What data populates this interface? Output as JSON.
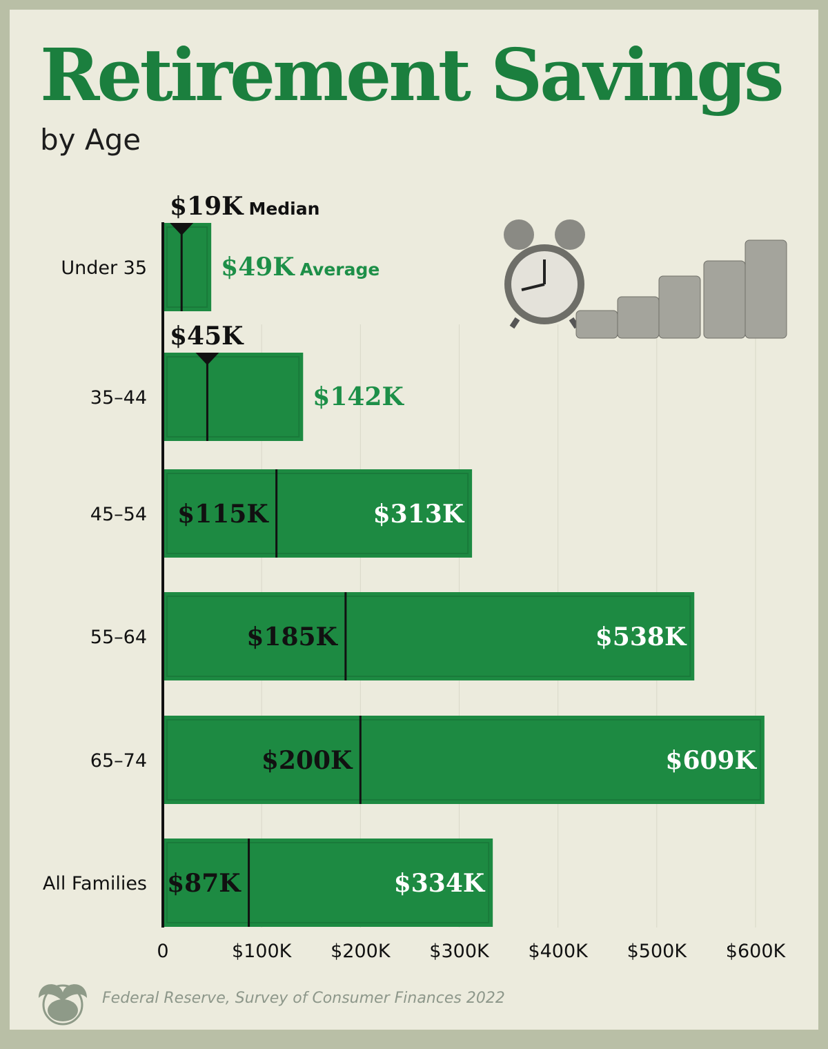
{
  "title": "Retirement Savings",
  "subtitle": "by Age",
  "source": "Federal Reserve, Survey of Consumer Finances 2022",
  "colors": {
    "bar": "#1d8a42",
    "title": "#1b7f3e",
    "average_label_outside": "#1d8f48",
    "background": "#ecebdd"
  },
  "chart_data": {
    "type": "bar",
    "orientation": "horizontal",
    "title": "Retirement Savings",
    "subtitle": "by Age",
    "categories": [
      "Under 35",
      "35–44",
      "45–54",
      "55–64",
      "65–74",
      "All Families"
    ],
    "series": [
      {
        "name": "Average",
        "values": [
          49,
          142,
          313,
          538,
          609,
          334
        ],
        "labels": [
          "$49K",
          "$142K",
          "$313K",
          "$538K",
          "$609K",
          "$334K"
        ]
      },
      {
        "name": "Median",
        "values": [
          19,
          45,
          115,
          185,
          200,
          87
        ],
        "labels": [
          "$19K",
          "$45K",
          "$115K",
          "$185K",
          "$200K",
          "$87K"
        ]
      }
    ],
    "legend_labels": {
      "median": "Median",
      "average": "Average"
    },
    "unit": "thousands USD",
    "xlim": [
      0,
      600
    ],
    "xticks": [
      0,
      100,
      200,
      300,
      400,
      500,
      600
    ],
    "xtick_labels": [
      "0",
      "$100K",
      "$200K",
      "$300K",
      "$400K",
      "$500K",
      "$600K"
    ],
    "grid": true
  }
}
